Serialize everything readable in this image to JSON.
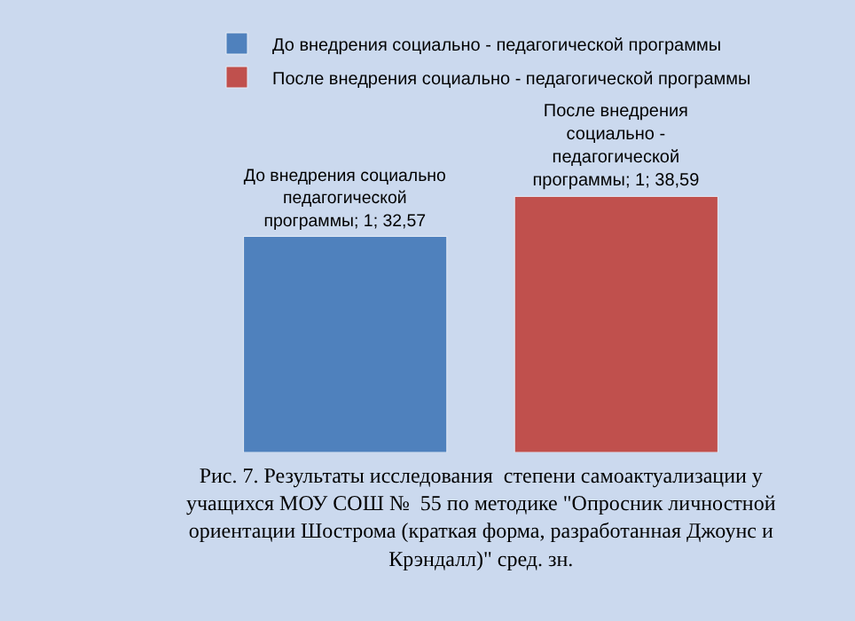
{
  "chart_data": {
    "type": "bar",
    "categories": [
      null
    ],
    "tick_labels": false,
    "grid": false,
    "legend": "top",
    "series": [
      {
        "name": "До внедрения социально - педагогической программы",
        "color": "#4f81bd",
        "values": [
          32.57
        ],
        "value_labels": [
          "До внедрения социально педагогической программы; 1; 32,57"
        ]
      },
      {
        "name": "После внедрения социально - педагогической программы",
        "color": "#c0504d",
        "values": [
          38.59
        ],
        "value_labels": [
          "После внедрения социально - педагогической программы; 1; 38,59"
        ]
      }
    ],
    "annotations": [
      "Рис. 7. Результаты исследования  степени самоактуализации у учащихся МОУ СОШ №  55 по методике \"Опросник личностной ориентации Шострома (краткая форма, разработанная Джоунс и Крэндалл)\" сред. зн."
    ]
  }
}
